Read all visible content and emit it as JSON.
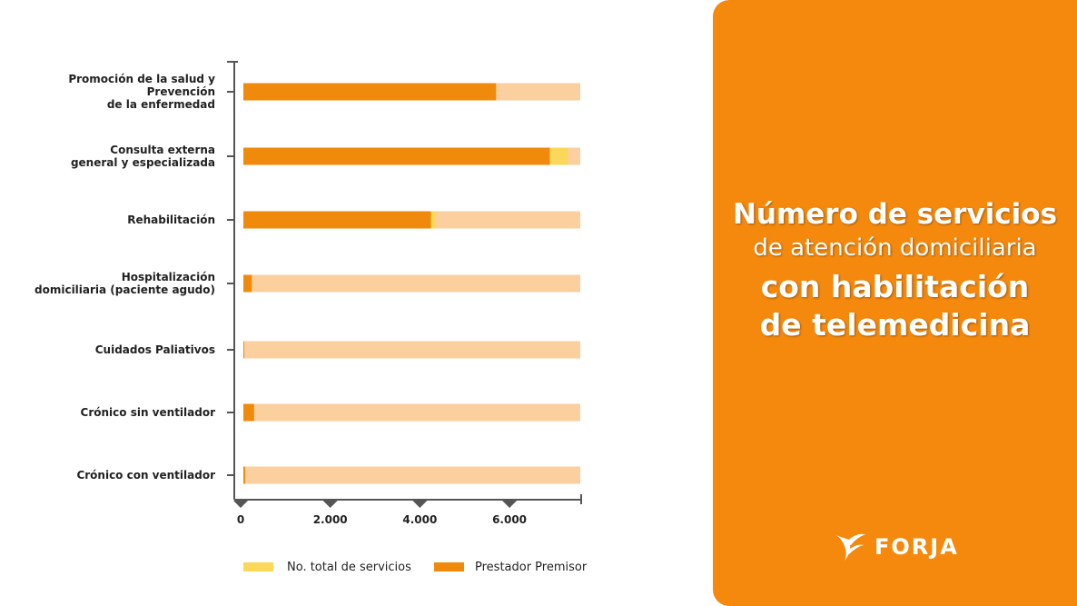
{
  "chart_data": {
    "type": "stacked-bar-horizontal",
    "categories": [
      "Promoción de la salud y Prevención\nde la enfermedad",
      "Consulta externa\ngeneral y especializada",
      "Rehabilitación",
      "Hospitalización\ndomiciliaria (paciente agudo)",
      "Cuidados Paliativos",
      "Crónico sin ventilador",
      "Crónico con ventilador"
    ],
    "series": [
      {
        "name": "Prestador Premisor",
        "color": "#ef8a0c",
        "values": [
          5700,
          6900,
          4250,
          250,
          80,
          300,
          100
        ]
      },
      {
        "name": "No. total de servicios",
        "color": "#fbd85a",
        "values": [
          0,
          400,
          100,
          0,
          0,
          0,
          0
        ]
      }
    ],
    "xlim": [
      0,
      7600
    ],
    "xticks": [
      0,
      {
        "value": 2000,
        "label": "2.000"
      },
      {
        "value": 4000,
        "label": "4.000"
      },
      {
        "value": 6000,
        "label": "6.000"
      }
    ]
  },
  "panel": {
    "title_lines": [
      "Número de servicios",
      "de atención domiciliaria",
      "con habilitación",
      "de telemedicina"
    ],
    "brand": "FORJA"
  }
}
